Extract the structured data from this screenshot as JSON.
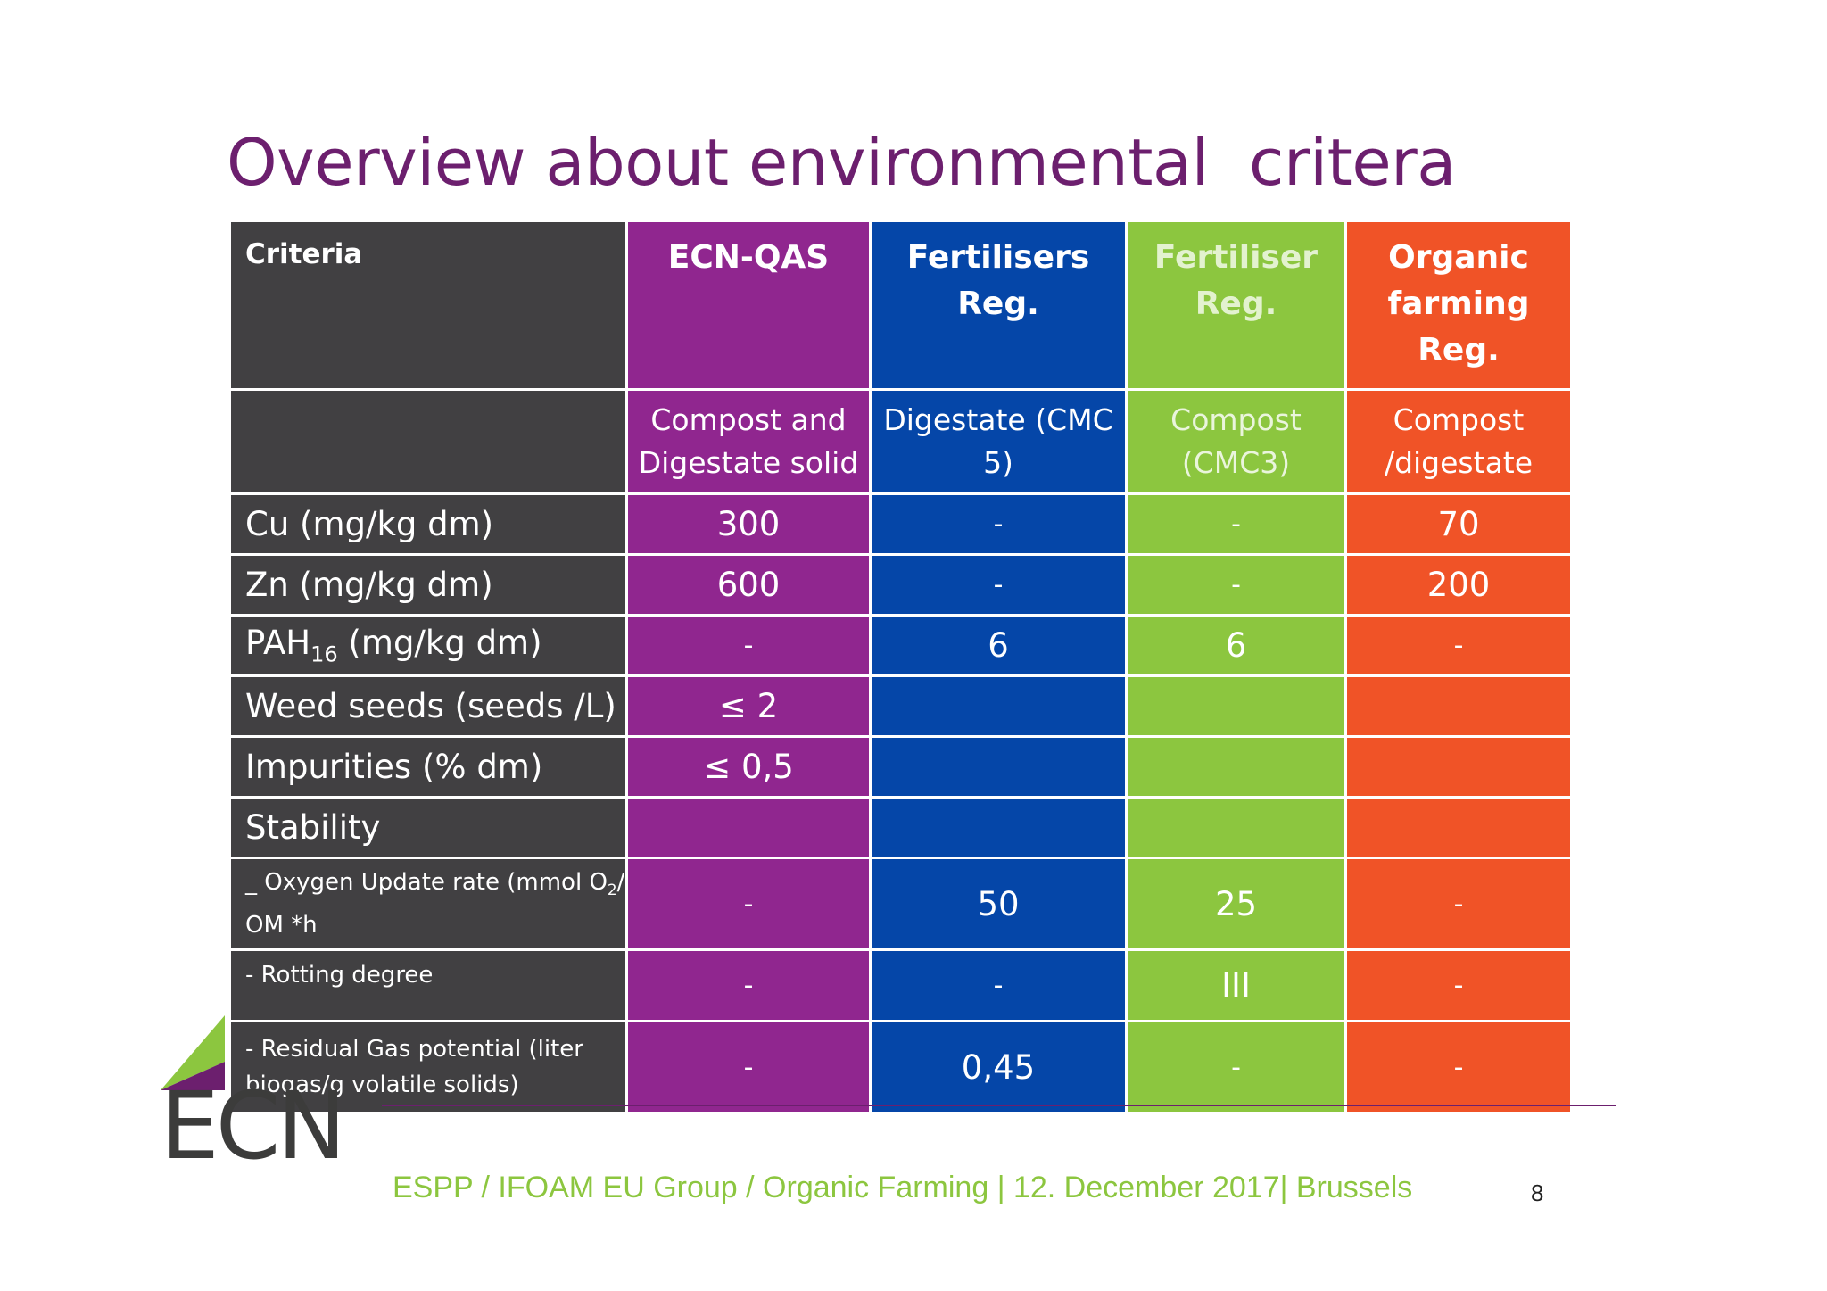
{
  "title": "Overview about environmental  critera",
  "table": {
    "header": [
      "Criteria",
      "ECN-QAS",
      "Fertilisers Reg.",
      "Fertiliser Reg.",
      "Organic farming Reg."
    ],
    "subheader": [
      "",
      "Compost and Digestate solid",
      "Digestate (CMC 5)",
      "Compost (CMC3)",
      "Compost /digestate"
    ],
    "rows": [
      {
        "label": "Cu (mg/kg dm)",
        "values": [
          "300",
          "-",
          "-",
          "70"
        ]
      },
      {
        "label": "Zn (mg/kg dm)",
        "values": [
          "600",
          "-",
          "-",
          "200"
        ]
      },
      {
        "label_main": "PAH",
        "label_sub": "16",
        "label_rest": " (mg/kg dm)",
        "values": [
          "-",
          "6",
          "6",
          "-"
        ]
      },
      {
        "label": "Weed seeds (seeds /L)",
        "values": [
          "≤ 2",
          "",
          "",
          ""
        ]
      },
      {
        "label": "Impurities (% dm)",
        "values": [
          "≤ 0,5",
          "",
          "",
          ""
        ]
      },
      {
        "label": "Stability",
        "values": [
          "",
          "",
          "",
          ""
        ]
      },
      {
        "label_main": "_ Oxygen Update rate (mmol O",
        "label_sub": "2",
        "label_rest": "/ OM *h",
        "values": [
          "-",
          "50",
          "25",
          "-"
        ]
      },
      {
        "label": "- Rotting degree",
        "values": [
          "-",
          "-",
          "III",
          "-"
        ]
      },
      {
        "label": "- Residual Gas potential (liter biogas/g volatile solids)",
        "values": [
          "-",
          "0,45",
          "-",
          "-"
        ]
      }
    ]
  },
  "logo": {
    "text": "ECN"
  },
  "footer": {
    "text": "ESPP / IFOAM EU Group / Organic Farming | 12. December 2017| Brussels",
    "page": "8"
  },
  "colors": {
    "title": "#6c1f6e",
    "grey": "#414042",
    "purple": "#90268f",
    "blue": "#0546a8",
    "green": "#8cc63f",
    "orange": "#f05327"
  }
}
